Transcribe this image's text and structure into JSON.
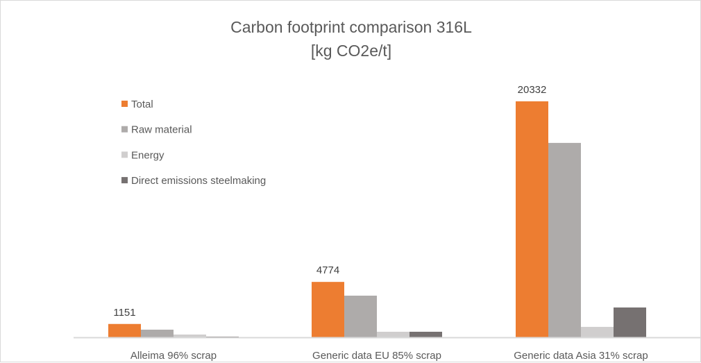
{
  "chart_data": {
    "type": "bar",
    "title": "Carbon footprint comparison 316L",
    "subtitle": "[kg CO2e/t]",
    "categories": [
      "Alleima 96% scrap",
      "Generic data EU 85% scrap",
      "Generic data Asia 31% scrap"
    ],
    "series": [
      {
        "name": "Total",
        "color": "#ED7D31",
        "values": [
          1151,
          4774,
          20332
        ],
        "data_labels": [
          "1151",
          "4774",
          "20332"
        ]
      },
      {
        "name": "Raw material",
        "color": "#AEABAA",
        "values": [
          660,
          3590,
          16750
        ]
      },
      {
        "name": "Energy",
        "color": "#D0CECE",
        "values": [
          240,
          480,
          900
        ]
      },
      {
        "name": "Direct emissions steelmaking",
        "color": "#767171",
        "values": [
          60,
          480,
          2570
        ]
      }
    ],
    "ylim": [
      0,
      20332
    ],
    "grid": false,
    "legend": "top-left"
  }
}
